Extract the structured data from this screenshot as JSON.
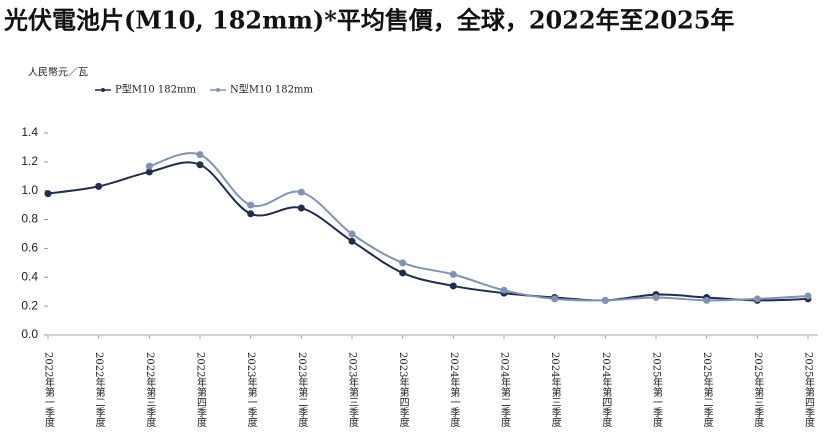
{
  "chart_data": {
    "type": "line",
    "title": "光伏電池片(M10, 182mm)*平均售價，全球，2022年至2025年",
    "y_label": "人民幣元／瓦",
    "categories": [
      "2022年第一季度",
      "2022年第二季度",
      "2022年第三季度",
      "2022年第四季度",
      "2023年第一季度",
      "2023年第二季度",
      "2023年第三季度",
      "2023年第四季度",
      "2024年第一季度",
      "2024年第二季度",
      "2024年第三季度",
      "2024年第四季度",
      "2025年第一季度",
      "2025年第二季度",
      "2025年第三季度",
      "2025年第四季度"
    ],
    "series": [
      {
        "name": "P型M10 182mm",
        "color": "#1f2d50",
        "values": [
          0.98,
          1.03,
          1.13,
          1.18,
          0.84,
          0.88,
          0.65,
          0.43,
          0.34,
          0.29,
          0.26,
          0.24,
          0.28,
          0.26,
          0.24,
          0.25
        ]
      },
      {
        "name": "N型M10 182mm",
        "color": "#7f93b5",
        "values": [
          null,
          null,
          1.17,
          1.25,
          0.9,
          0.99,
          0.7,
          0.5,
          0.42,
          0.31,
          0.25,
          0.24,
          0.26,
          0.24,
          0.25,
          0.27
        ]
      }
    ],
    "ylim": [
      0,
      1.4
    ],
    "yticks": [
      {
        "value": 0,
        "label": "0.0"
      },
      0.2,
      0.4,
      0.6,
      0.8,
      {
        "value": 1,
        "label": "1.0"
      },
      1.2,
      1.4
    ],
    "legend": "top"
  }
}
